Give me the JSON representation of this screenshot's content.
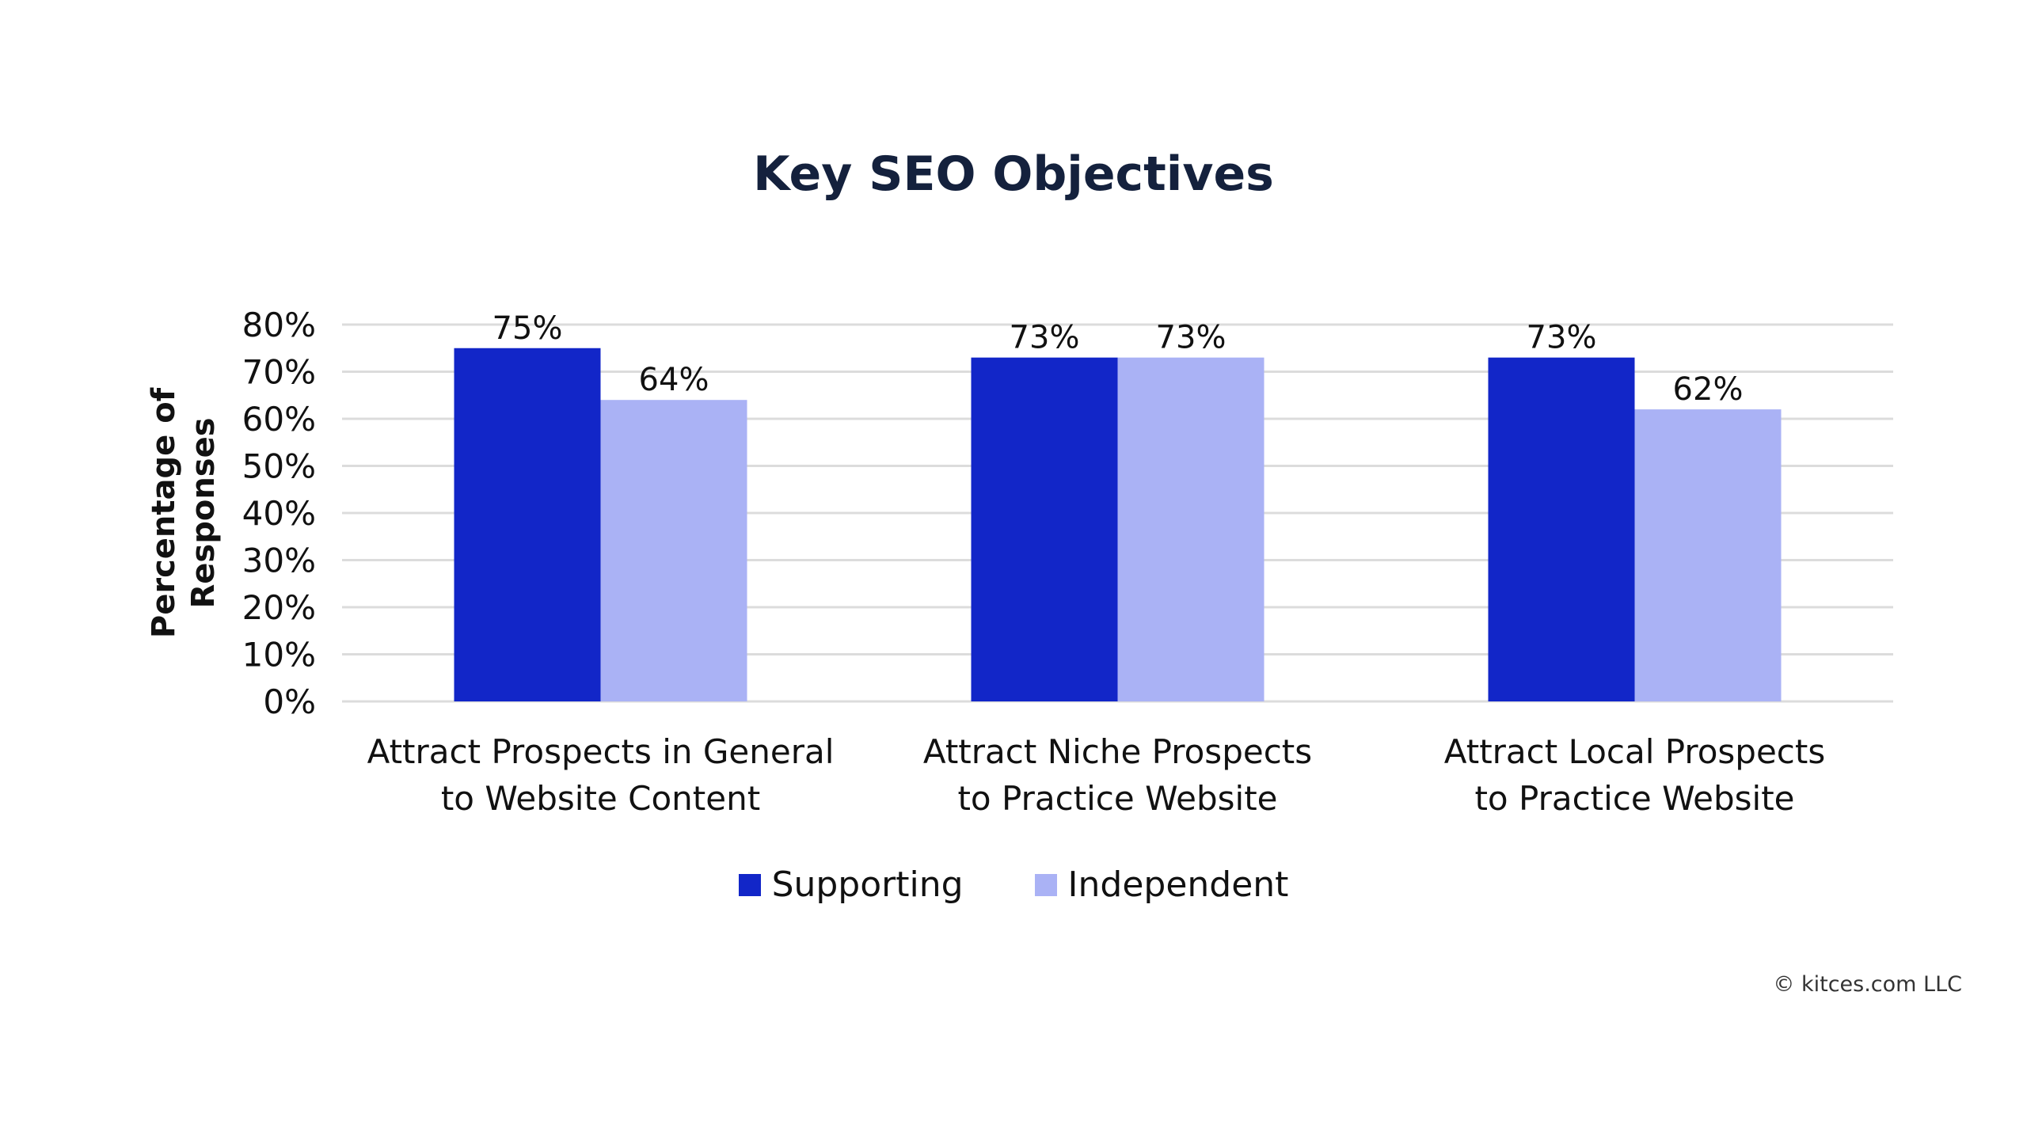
{
  "chart_data": {
    "type": "bar",
    "title": "Key SEO Objectives",
    "ylabel": "Percentage of Responses",
    "ylabel_lines": [
      "Percentage of",
      "Responses"
    ],
    "xlabel": "",
    "ylim": [
      0,
      80
    ],
    "yticks": [
      "0%",
      "10%",
      "20%",
      "30%",
      "40%",
      "50%",
      "60%",
      "70%",
      "80%"
    ],
    "ytick_values": [
      0,
      10,
      20,
      30,
      40,
      50,
      60,
      70,
      80
    ],
    "grid": true,
    "legend_position": "bottom",
    "categories": [
      [
        "Attract Prospects in General",
        "to Website Content"
      ],
      [
        "Attract Niche Prospects",
        "to Practice Website"
      ],
      [
        "Attract Local Prospects",
        "to Practice Website"
      ]
    ],
    "series": [
      {
        "name": "Supporting",
        "color": "#1226c8",
        "values": [
          75,
          73,
          73
        ],
        "labels": [
          "75%",
          "73%",
          "73%"
        ]
      },
      {
        "name": "Independent",
        "color": "#aab2f5",
        "values": [
          64,
          73,
          62
        ],
        "labels": [
          "64%",
          "73%",
          "62%"
        ]
      }
    ]
  },
  "footer": {
    "copyright": "© kitces.com LLC"
  }
}
